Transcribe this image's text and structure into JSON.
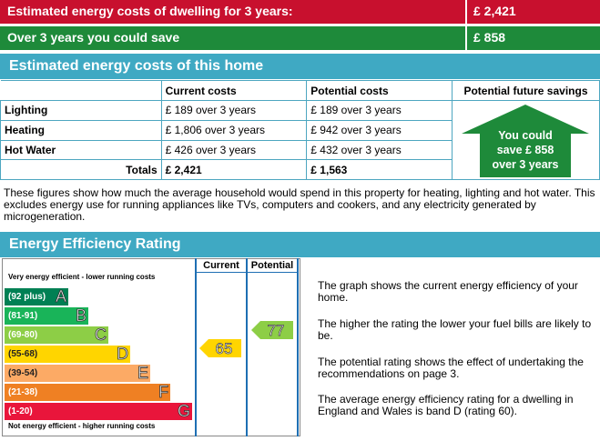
{
  "banners": {
    "estimated_label": "Estimated energy costs of dwelling for 3 years:",
    "estimated_value": "£ 2,421",
    "save_label": "Over 3 years you could save",
    "save_value": "£ 858"
  },
  "costs_section": {
    "title": "Estimated energy costs of this home",
    "headers": [
      "Current costs",
      "Potential costs",
      "Potential future savings"
    ],
    "rows": [
      {
        "label": "Lighting",
        "current": "£ 189 over 3 years",
        "potential": "£ 189 over 3 years"
      },
      {
        "label": "Heating",
        "current": "£ 1,806 over 3 years",
        "potential": "£ 942 over 3 years"
      },
      {
        "label": "Hot Water",
        "current": "£ 426 over 3 years",
        "potential": "£ 432 over 3 years"
      }
    ],
    "totals": {
      "label": "Totals",
      "current": "£ 2,421",
      "potential": "£ 1,563"
    },
    "savings_arrow": [
      "You could",
      "save £ 858",
      "over 3 years"
    ],
    "note": "These figures show how much the average household would spend in this property for heating, lighting and hot water. This excludes energy use for running appliances like TVs, computers and cookers, and any electricity generated by microgeneration."
  },
  "rating_section": {
    "title": "Energy Efficiency Rating",
    "col_current": "Current",
    "col_potential": "Potential",
    "top_note": "Very energy efficient - lower running costs",
    "bottom_note": "Not energy efficient - higher running costs",
    "bands": [
      {
        "range": "(92 plus)",
        "letter": "A",
        "color": "#008054"
      },
      {
        "range": "(81-91)",
        "letter": "B",
        "color": "#19b459"
      },
      {
        "range": "(69-80)",
        "letter": "C",
        "color": "#8dce46"
      },
      {
        "range": "(55-68)",
        "letter": "D",
        "color": "#ffd500"
      },
      {
        "range": "(39-54)",
        "letter": "E",
        "color": "#fcaa65"
      },
      {
        "range": "(21-38)",
        "letter": "F",
        "color": "#ef8023"
      },
      {
        "range": "(1-20)",
        "letter": "G",
        "color": "#e9153b"
      }
    ],
    "current_rating": "65",
    "current_color": "#ffd500",
    "potential_rating": "77",
    "potential_color": "#8dce46",
    "explanations": [
      "The graph shows the current energy efficiency of your home.",
      "The higher the rating the lower your fuel bills are likely to be.",
      "The potential rating shows the effect of undertaking the recommendations on page 3.",
      "The average energy efficiency rating for a dwelling in England and Wales is band D (rating 60)."
    ]
  }
}
